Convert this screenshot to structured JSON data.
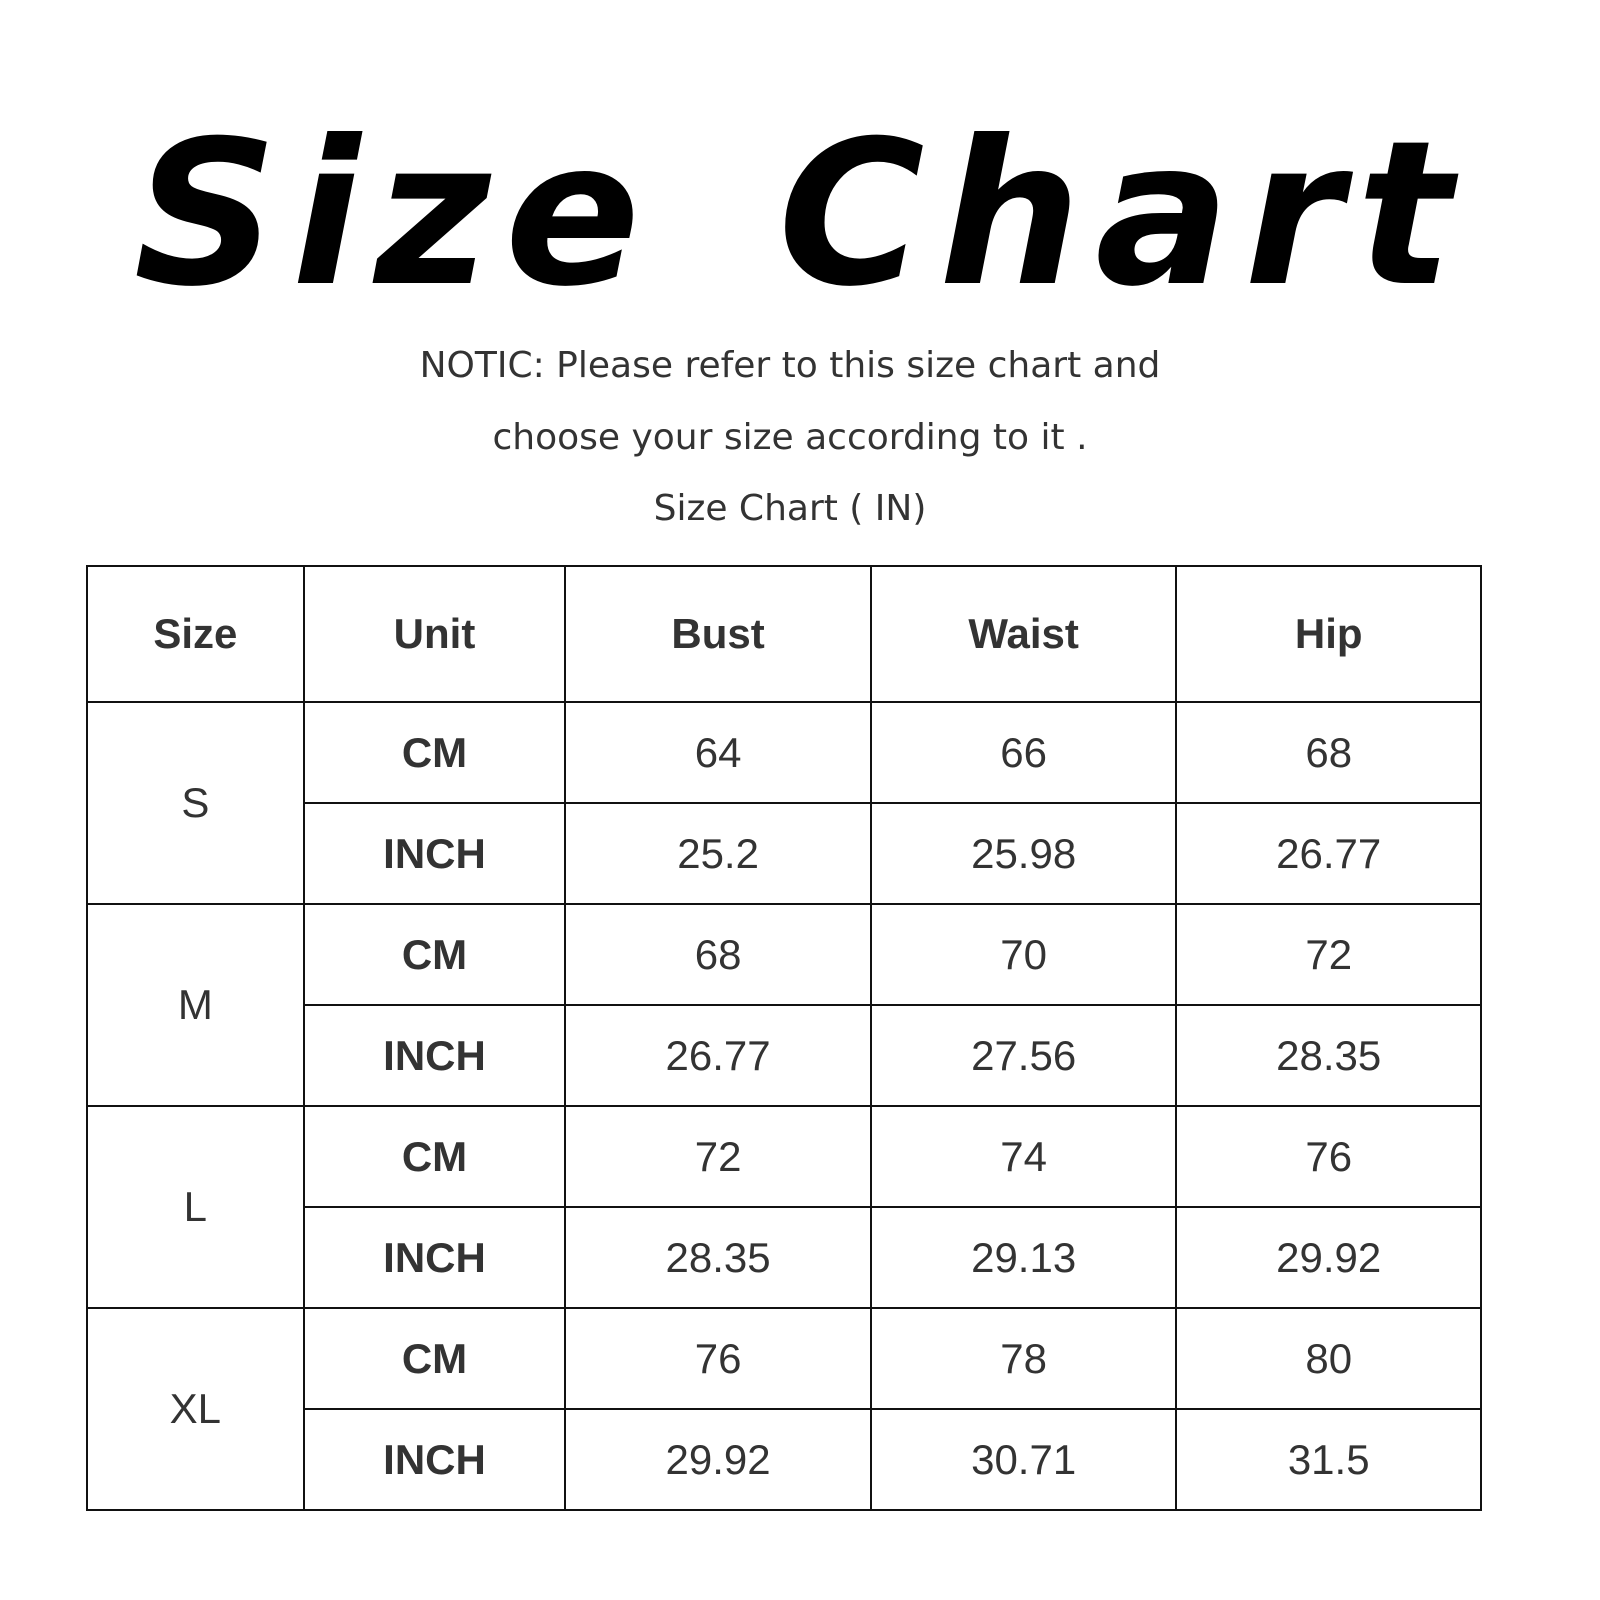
{
  "title": "Size Chart",
  "notice_line1": "NOTIC: Please refer to this size chart and",
  "notice_line2": "choose your size according to it .",
  "subtitle": "Size Chart ( IN)",
  "table": {
    "headers": [
      "Size",
      "Unit",
      "Bust",
      "Waist",
      "Hip"
    ],
    "sizes": [
      {
        "size": "S",
        "rows": [
          {
            "unit": "CM",
            "bust": "64",
            "waist": "66",
            "hip": "68"
          },
          {
            "unit": "INCH",
            "bust": "25.2",
            "waist": "25.98",
            "hip": "26.77"
          }
        ]
      },
      {
        "size": "M",
        "rows": [
          {
            "unit": "CM",
            "bust": "68",
            "waist": "70",
            "hip": "72"
          },
          {
            "unit": "INCH",
            "bust": "26.77",
            "waist": "27.56",
            "hip": "28.35"
          }
        ]
      },
      {
        "size": "L",
        "rows": [
          {
            "unit": "CM",
            "bust": "72",
            "waist": "74",
            "hip": "76"
          },
          {
            "unit": "INCH",
            "bust": "28.35",
            "waist": "29.13",
            "hip": "29.92"
          }
        ]
      },
      {
        "size": "XL",
        "rows": [
          {
            "unit": "CM",
            "bust": "76",
            "waist": "78",
            "hip": "80"
          },
          {
            "unit": "INCH",
            "bust": "29.92",
            "waist": "30.71",
            "hip": "31.5"
          }
        ]
      }
    ]
  }
}
